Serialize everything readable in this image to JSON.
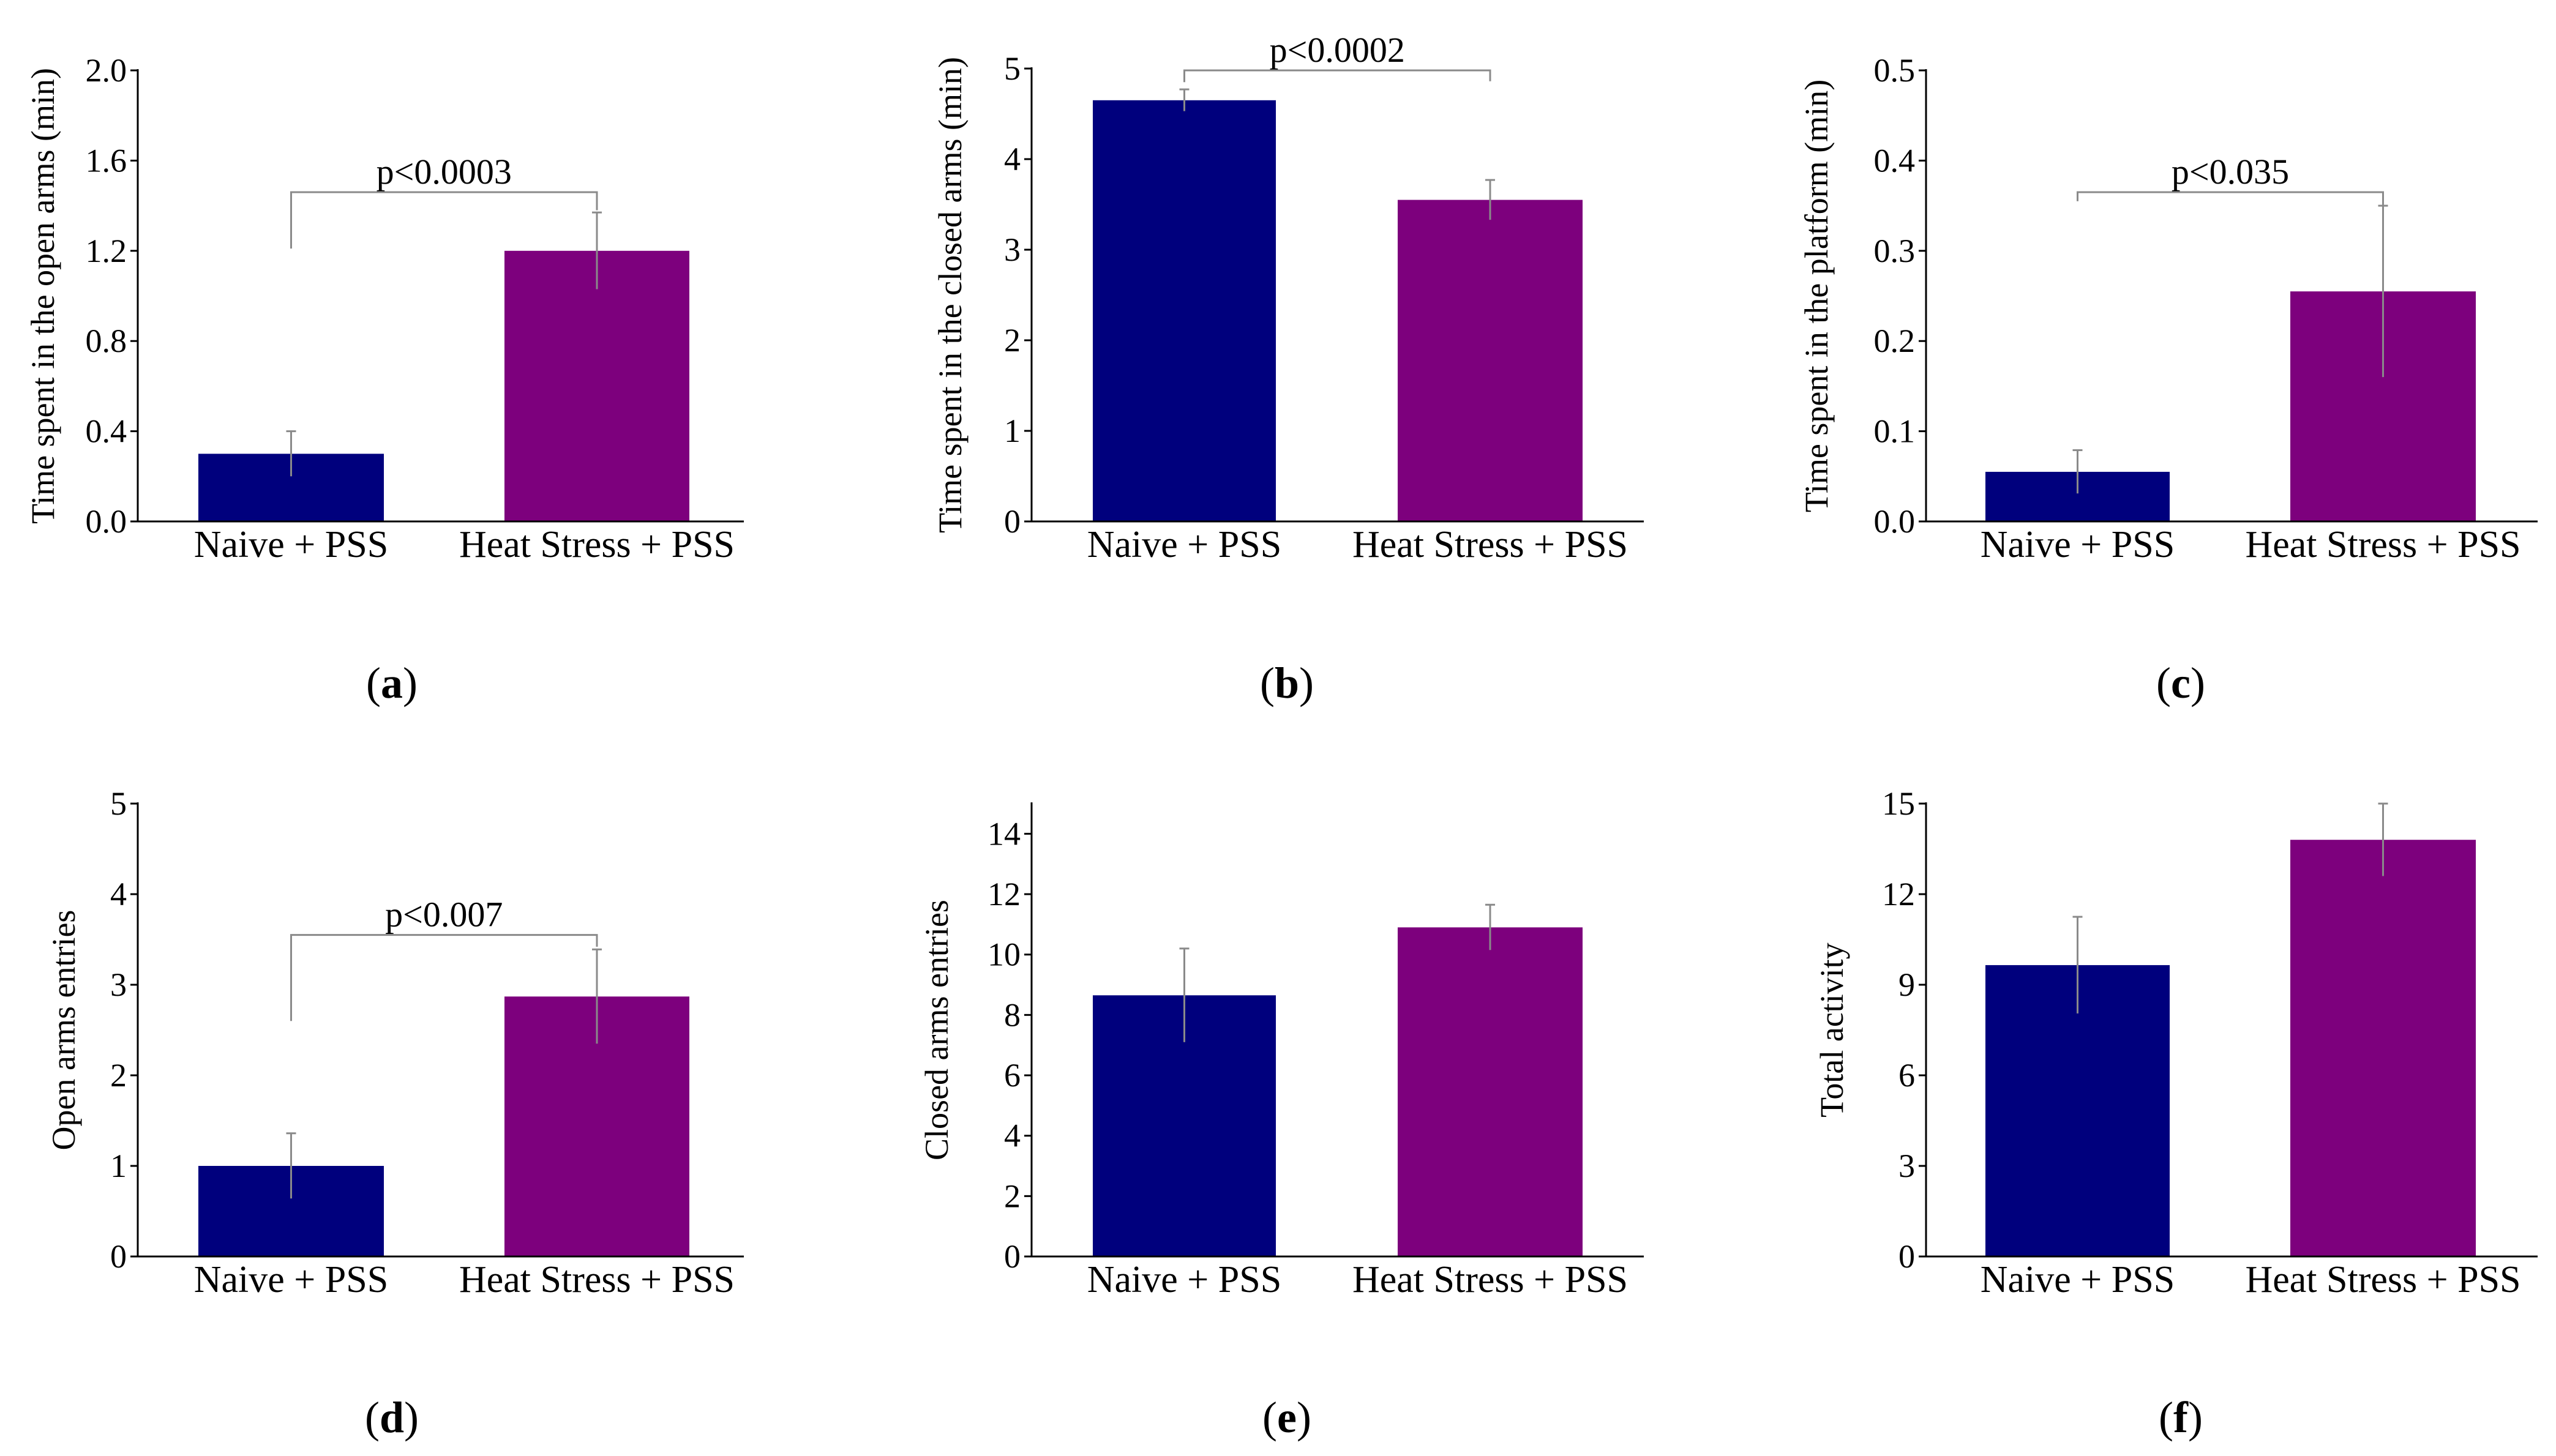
{
  "chart_data": [
    {
      "type": "bar",
      "panel": "a",
      "ylabel": "Time spent in the open arms (min)",
      "ylim": [
        0,
        2.0
      ],
      "yticks": [
        "0.0",
        "0.4",
        "0.8",
        "1.2",
        "1.6",
        "2.0"
      ],
      "categories": [
        "Naive + PSS",
        "Heat Stress + PSS"
      ],
      "values": [
        0.3,
        1.2
      ],
      "errors": [
        0.1,
        0.17
      ],
      "colors": [
        "#00007d",
        "#7d007d"
      ],
      "significance": {
        "label": "p<0.0003",
        "y": 1.46,
        "left_end": 1.21,
        "right_end": 1.38
      }
    },
    {
      "type": "bar",
      "panel": "b",
      "ylabel": "Time spent in the closed arms (min)",
      "ylim": [
        0,
        5
      ],
      "yticks": [
        "0",
        "1",
        "2",
        "3",
        "4",
        "5"
      ],
      "categories": [
        "Naive + PSS",
        "Heat Stress + PSS"
      ],
      "values": [
        4.65,
        3.55
      ],
      "errors": [
        0.12,
        0.22
      ],
      "colors": [
        "#00007d",
        "#7d007d"
      ],
      "significance": {
        "label": "p<0.0002",
        "y": 4.98,
        "left_end": 4.85,
        "right_end": 4.86
      }
    },
    {
      "type": "bar",
      "panel": "c",
      "ylabel": "Time spent in the platform (min)",
      "ylim": [
        0,
        0.5
      ],
      "yticks": [
        "0.0",
        "0.1",
        "0.2",
        "0.3",
        "0.4",
        "0.5"
      ],
      "categories": [
        "Naive + PSS",
        "Heat Stress + PSS"
      ],
      "values": [
        0.055,
        0.255
      ],
      "errors": [
        0.024,
        0.095
      ],
      "colors": [
        "#00007d",
        "#7d007d"
      ],
      "significance": {
        "label": "p<0.035",
        "y": 0.365,
        "left_end": 0.355,
        "right_end": 0.345
      }
    },
    {
      "type": "bar",
      "panel": "d",
      "ylabel": "Open arms entries",
      "ylim": [
        0,
        5
      ],
      "yticks": [
        "0",
        "1",
        "2",
        "3",
        "4",
        "5"
      ],
      "categories": [
        "Naive + PSS",
        "Heat Stress + PSS"
      ],
      "values": [
        1.0,
        2.87
      ],
      "errors": [
        0.36,
        0.52
      ],
      "colors": [
        "#00007d",
        "#7d007d"
      ],
      "significance": {
        "label": "p<0.007",
        "y": 3.55,
        "left_end": 2.6,
        "right_end": 3.42
      }
    },
    {
      "type": "bar",
      "panel": "e",
      "ylabel": "Closed arms entries",
      "ylim": [
        0,
        15
      ],
      "yticks": [
        "0",
        "2",
        "4",
        "6",
        "8",
        "10",
        "12",
        "14"
      ],
      "categories": [
        "Naive + PSS",
        "Heat Stress + PSS"
      ],
      "values": [
        8.65,
        10.9
      ],
      "errors": [
        1.55,
        0.75
      ],
      "colors": [
        "#00007d",
        "#7d007d"
      ]
    },
    {
      "type": "bar",
      "panel": "f",
      "ylabel": "Total activity",
      "ylim": [
        0,
        15
      ],
      "yticks": [
        "0",
        "3",
        "6",
        "9",
        "12",
        "15"
      ],
      "categories": [
        "Naive + PSS",
        "Heat Stress + PSS"
      ],
      "values": [
        9.65,
        13.8
      ],
      "errors": [
        1.6,
        1.2
      ],
      "colors": [
        "#00007d",
        "#7d007d"
      ]
    }
  ],
  "panel_letters": [
    "a",
    "b",
    "c",
    "d",
    "e",
    "f"
  ]
}
